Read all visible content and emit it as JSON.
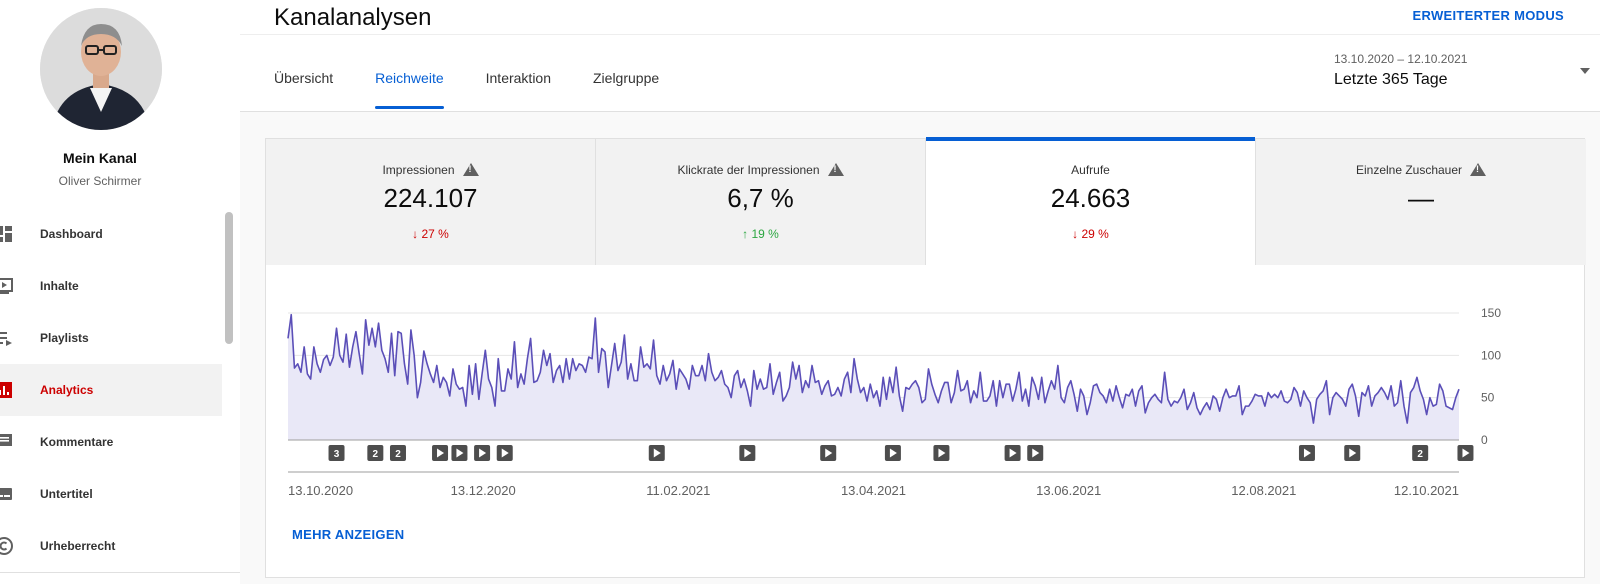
{
  "sidebar": {
    "channel_name": "Mein Kanal",
    "channel_owner": "Oliver Schirmer",
    "items": [
      {
        "label": "Dashboard",
        "icon": "dashboard-icon",
        "active": false
      },
      {
        "label": "Inhalte",
        "icon": "content-icon",
        "active": false
      },
      {
        "label": "Playlists",
        "icon": "playlist-icon",
        "active": false
      },
      {
        "label": "Analytics",
        "icon": "analytics-icon",
        "active": true
      },
      {
        "label": "Kommentare",
        "icon": "comments-icon",
        "active": false
      },
      {
        "label": "Untertitel",
        "icon": "subtitles-icon",
        "active": false
      },
      {
        "label": "Urheberrecht",
        "icon": "copyright-icon",
        "active": false
      }
    ]
  },
  "header": {
    "title": "Kanalanalysen",
    "advanced_mode": "ERWEITERTER MODUS",
    "tabs": [
      {
        "label": "Übersicht",
        "active": false
      },
      {
        "label": "Reichweite",
        "active": true
      },
      {
        "label": "Interaktion",
        "active": false
      },
      {
        "label": "Zielgruppe",
        "active": false
      }
    ],
    "date_range": "13.10.2020 – 12.10.2021",
    "date_period": "Letzte 365 Tage"
  },
  "metrics": [
    {
      "label": "Impressionen",
      "value": "224.107",
      "delta": "27 %",
      "direction": "down",
      "warning": true,
      "active": false
    },
    {
      "label": "Klickrate der Impressionen",
      "value": "6,7 %",
      "delta": "19 %",
      "direction": "up",
      "warning": true,
      "active": false
    },
    {
      "label": "Aufrufe",
      "value": "24.663",
      "delta": "29 %",
      "direction": "down",
      "warning": false,
      "active": true
    },
    {
      "label": "Einzelne Zuschauer",
      "value": "—",
      "delta": "",
      "direction": "none",
      "warning": true,
      "active": false
    }
  ],
  "more_link": "MEHR ANZEIGEN",
  "colors": {
    "accent": "#065fd4",
    "line": "#5b4fb8",
    "area": "#e9e8f7",
    "down": "#cc0000",
    "up": "#2ba640"
  },
  "chart_data": {
    "type": "line",
    "series": [
      {
        "values": [
          120,
          148,
          85,
          90,
          80,
          110,
          78,
          72,
          110,
          90,
          80,
          95,
          100,
          88,
          98,
          132,
          100,
          92,
          125,
          86,
          110,
          128,
          102,
          78,
          142,
          112,
          132,
          110,
          138,
          106,
          96,
          80,
          126,
          76,
          128,
          126,
          90,
          66,
          130,
          100,
          50,
          68,
          105,
          90,
          78,
          68,
          88,
          62,
          74,
          68,
          52,
          84,
          66,
          60,
          62,
          40,
          88,
          54,
          90,
          48,
          78,
          106,
          72,
          62,
          40,
          96,
          58,
          58,
          84,
          72,
          116,
          62,
          78,
          66,
          96,
          120,
          68,
          70,
          80,
          106,
          88,
          102,
          68,
          82,
          88,
          68,
          96,
          72,
          96,
          82,
          90,
          88,
          80,
          98,
          96,
          144,
          80,
          108,
          104,
          62,
          88,
          114,
          82,
          92,
          124,
          72,
          90,
          70,
          70,
          110,
          86,
          90,
          84,
          118,
          76,
          66,
          88,
          70,
          78,
          94,
          60,
          84,
          78,
          72,
          60,
          88,
          76,
          76,
          88,
          70,
          102,
          80,
          70,
          74,
          82,
          66,
          62,
          50,
          76,
          82,
          62,
          72,
          58,
          40,
          82,
          60,
          72,
          60,
          62,
          90,
          54,
          68,
          80,
          46,
          52,
          62,
          92,
          72,
          88,
          56,
          70,
          62,
          88,
          68,
          70,
          54,
          64,
          70,
          52,
          54,
          62,
          52,
          72,
          80,
          56,
          96,
          72,
          56,
          62,
          46,
          66,
          50,
          58,
          40,
          74,
          48,
          74,
          56,
          86,
          52,
          34,
          62,
          60,
          66,
          70,
          62,
          44,
          48,
          84,
          66,
          54,
          44,
          58,
          68,
          68,
          44,
          56,
          82,
          58,
          60,
          70,
          44,
          58,
          50,
          80,
          46,
          46,
          52,
          70,
          40,
          70,
          50,
          66,
          66,
          46,
          60,
          80,
          46,
          60,
          40,
          74,
          64,
          48,
          74,
          44,
          58,
          70,
          60,
          88,
          50,
          44,
          62,
          70,
          54,
          34,
          60,
          52,
          30,
          44,
          64,
          66,
          56,
          52,
          44,
          60,
          46,
          64,
          50,
          38,
          54,
          52,
          60,
          40,
          58,
          64,
          32,
          44,
          50,
          54,
          48,
          44,
          80,
          48,
          40,
          46,
          44,
          50,
          60,
          36,
          44,
          56,
          38,
          30,
          38,
          44,
          36,
          52,
          48,
          34,
          50,
          60,
          50,
          52,
          52,
          64,
          30,
          40,
          40,
          46,
          54,
          52,
          52,
          40,
          56,
          50,
          54,
          50,
          58,
          46,
          44,
          48,
          62,
          56,
          40,
          58,
          50,
          44,
          20,
          48,
          54,
          58,
          70,
          30,
          50,
          56,
          52,
          48,
          40,
          60,
          66,
          52,
          28,
          56,
          52,
          64,
          40,
          52,
          56,
          62,
          56,
          48,
          64,
          40,
          44,
          70,
          40,
          20,
          56,
          62,
          74,
          58,
          48,
          30,
          50,
          40,
          42,
          66,
          58,
          40,
          38,
          36,
          50,
          60
        ]
      }
    ],
    "x_tick_labels": [
      "13.10.2020",
      "13.12.2020",
      "11.02.2021",
      "13.04.2021",
      "13.06.2021",
      "12.08.2021",
      "12.10.2021"
    ],
    "y_ticks": [
      0,
      50,
      100,
      150
    ],
    "ylim": [
      0,
      150
    ],
    "xlabel": "",
    "ylabel": "",
    "grid": true,
    "markers": [
      {
        "index": 15,
        "label": "3"
      },
      {
        "index": 27,
        "label": "2"
      },
      {
        "index": 34,
        "label": "2"
      },
      {
        "index": 47,
        "label": "▶"
      },
      {
        "index": 53,
        "label": "▶"
      },
      {
        "index": 60,
        "label": "▶"
      },
      {
        "index": 67,
        "label": "▶"
      },
      {
        "index": 114,
        "label": "▶"
      },
      {
        "index": 142,
        "label": "▶"
      },
      {
        "index": 167,
        "label": "▶"
      },
      {
        "index": 187,
        "label": "▶"
      },
      {
        "index": 202,
        "label": "▶"
      },
      {
        "index": 224,
        "label": "▶"
      },
      {
        "index": 231,
        "label": "▶"
      },
      {
        "index": 315,
        "label": "▶"
      },
      {
        "index": 329,
        "label": "▶"
      },
      {
        "index": 350,
        "label": "2"
      },
      {
        "index": 364,
        "label": "▶"
      }
    ]
  }
}
